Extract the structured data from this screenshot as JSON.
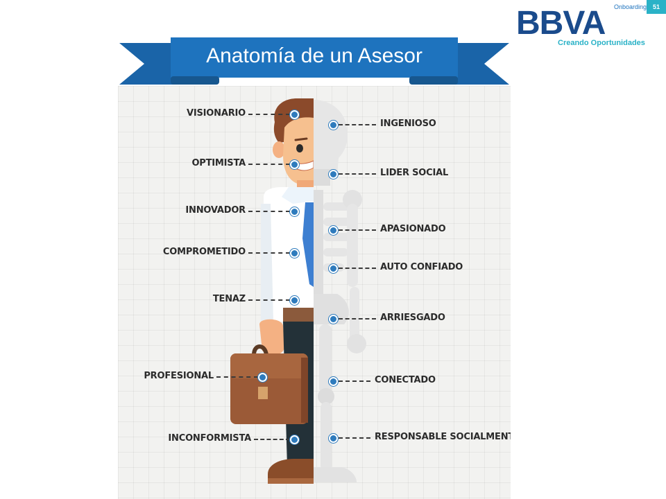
{
  "header": {
    "section_tag": "Onboarding",
    "page_number": "51",
    "brand": "BBVA",
    "brand_tagline": "Creando Oportunidades",
    "brand_color": "#1a4b8c",
    "accent_color": "#2ab2c7"
  },
  "banner": {
    "title": "Anatomía de un Asesor",
    "color": "#1e73be"
  },
  "traits": {
    "left": [
      "VISIONARIO",
      "OPTIMISTA",
      "INNOVADOR",
      "COMPROMETIDO",
      "TENAZ",
      "PROFESIONAL",
      "INCONFORMISTA"
    ],
    "right": [
      "INGENIOSO",
      "LIDER SOCIAL",
      "APASIONADO",
      "AUTO CONFIADO",
      "ARRIESGADO",
      "CONECTADO",
      "RESPONSABLE SOCIALMENTE"
    ]
  },
  "icons": [
    "advisor-figure",
    "skeleton-figure",
    "briefcase-icon"
  ]
}
